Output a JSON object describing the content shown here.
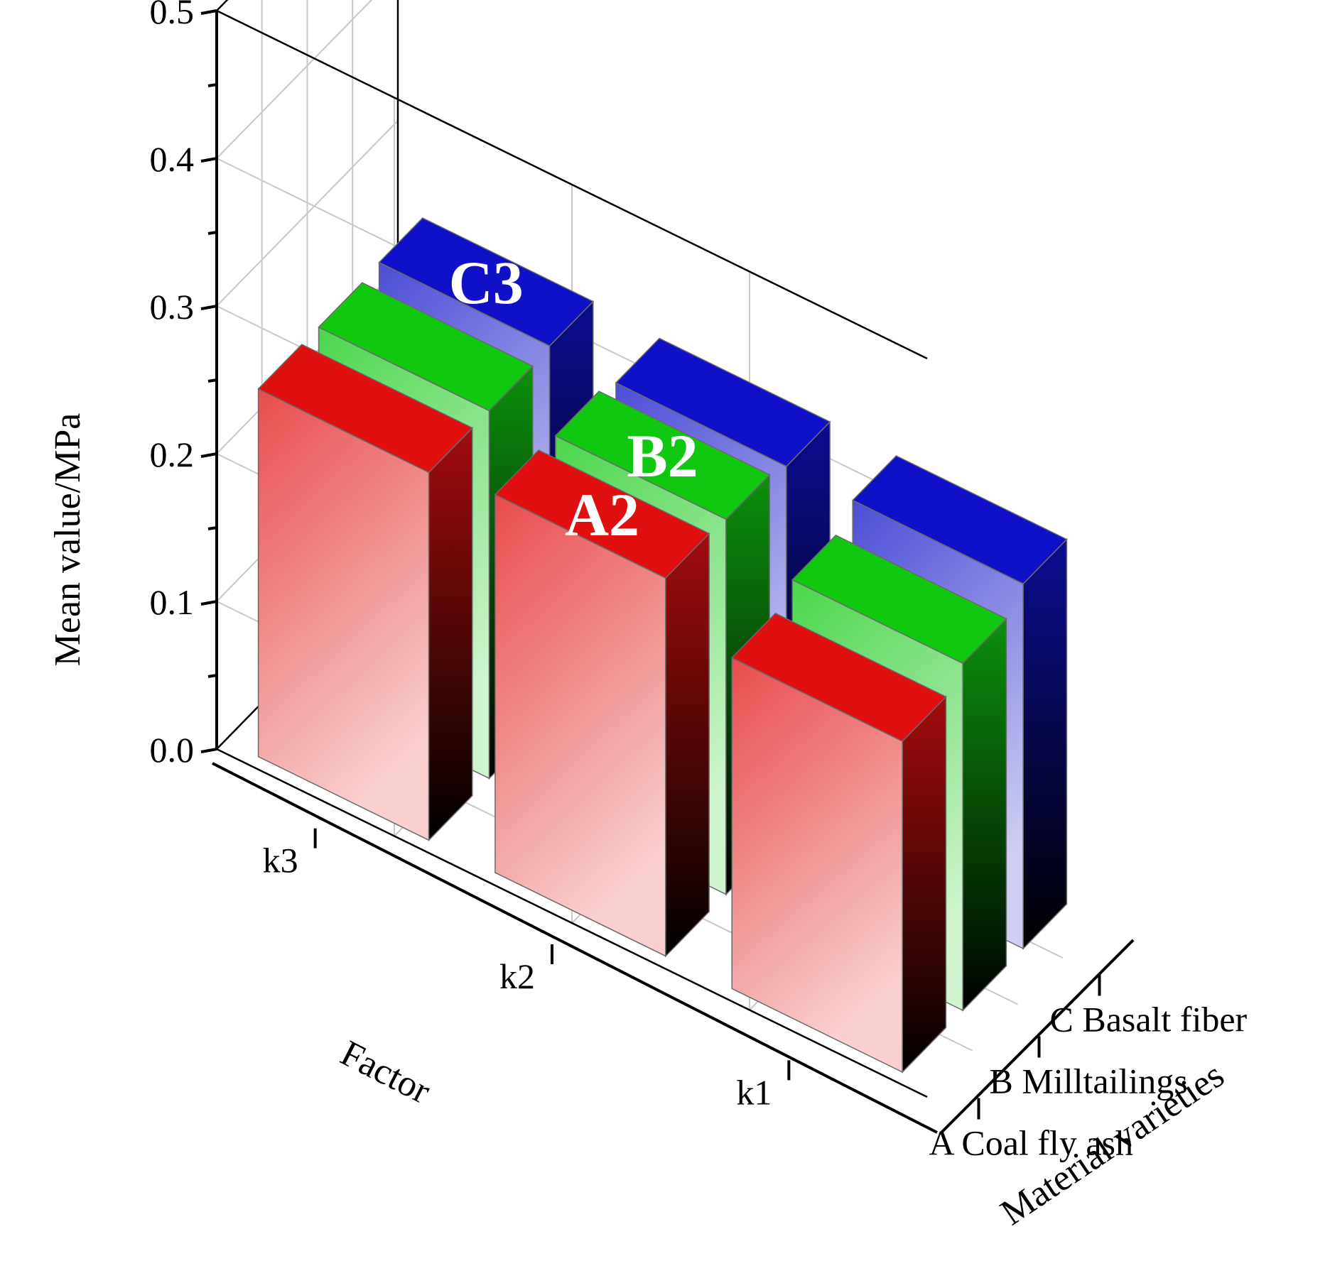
{
  "chart_data": {
    "type": "bar3d",
    "title": "",
    "zlabel": "Mean value/MPa",
    "xlabel": "Material varieties",
    "ylabel": "Factor",
    "zlim": [
      0,
      0.5
    ],
    "zticks": [
      "0.0",
      "0.1",
      "0.2",
      "0.3",
      "0.4",
      "0.5"
    ],
    "grid": true,
    "materials": [
      "A Coal fly ash",
      "B Milltailings",
      "C Basalt fiber"
    ],
    "factors": [
      "k1",
      "k2",
      "k3"
    ],
    "series": [
      {
        "material": "A Coal fly ash",
        "color": "#e01010",
        "values": [
          0.224,
          0.256,
          0.249
        ]
      },
      {
        "material": "B Milltailings",
        "color": "#10c810",
        "values": [
          0.235,
          0.254,
          0.249
        ]
      },
      {
        "material": "C Basalt fiber",
        "color": "#1010c8",
        "values": [
          0.247,
          0.248,
          0.251
        ]
      }
    ],
    "annotations": [
      {
        "text": "A2",
        "material": "A Coal fly ash",
        "factor": "k2"
      },
      {
        "text": "B2",
        "material": "B Milltailings",
        "factor": "k2"
      },
      {
        "text": "C3",
        "material": "C Basalt fiber",
        "factor": "k3"
      }
    ]
  }
}
